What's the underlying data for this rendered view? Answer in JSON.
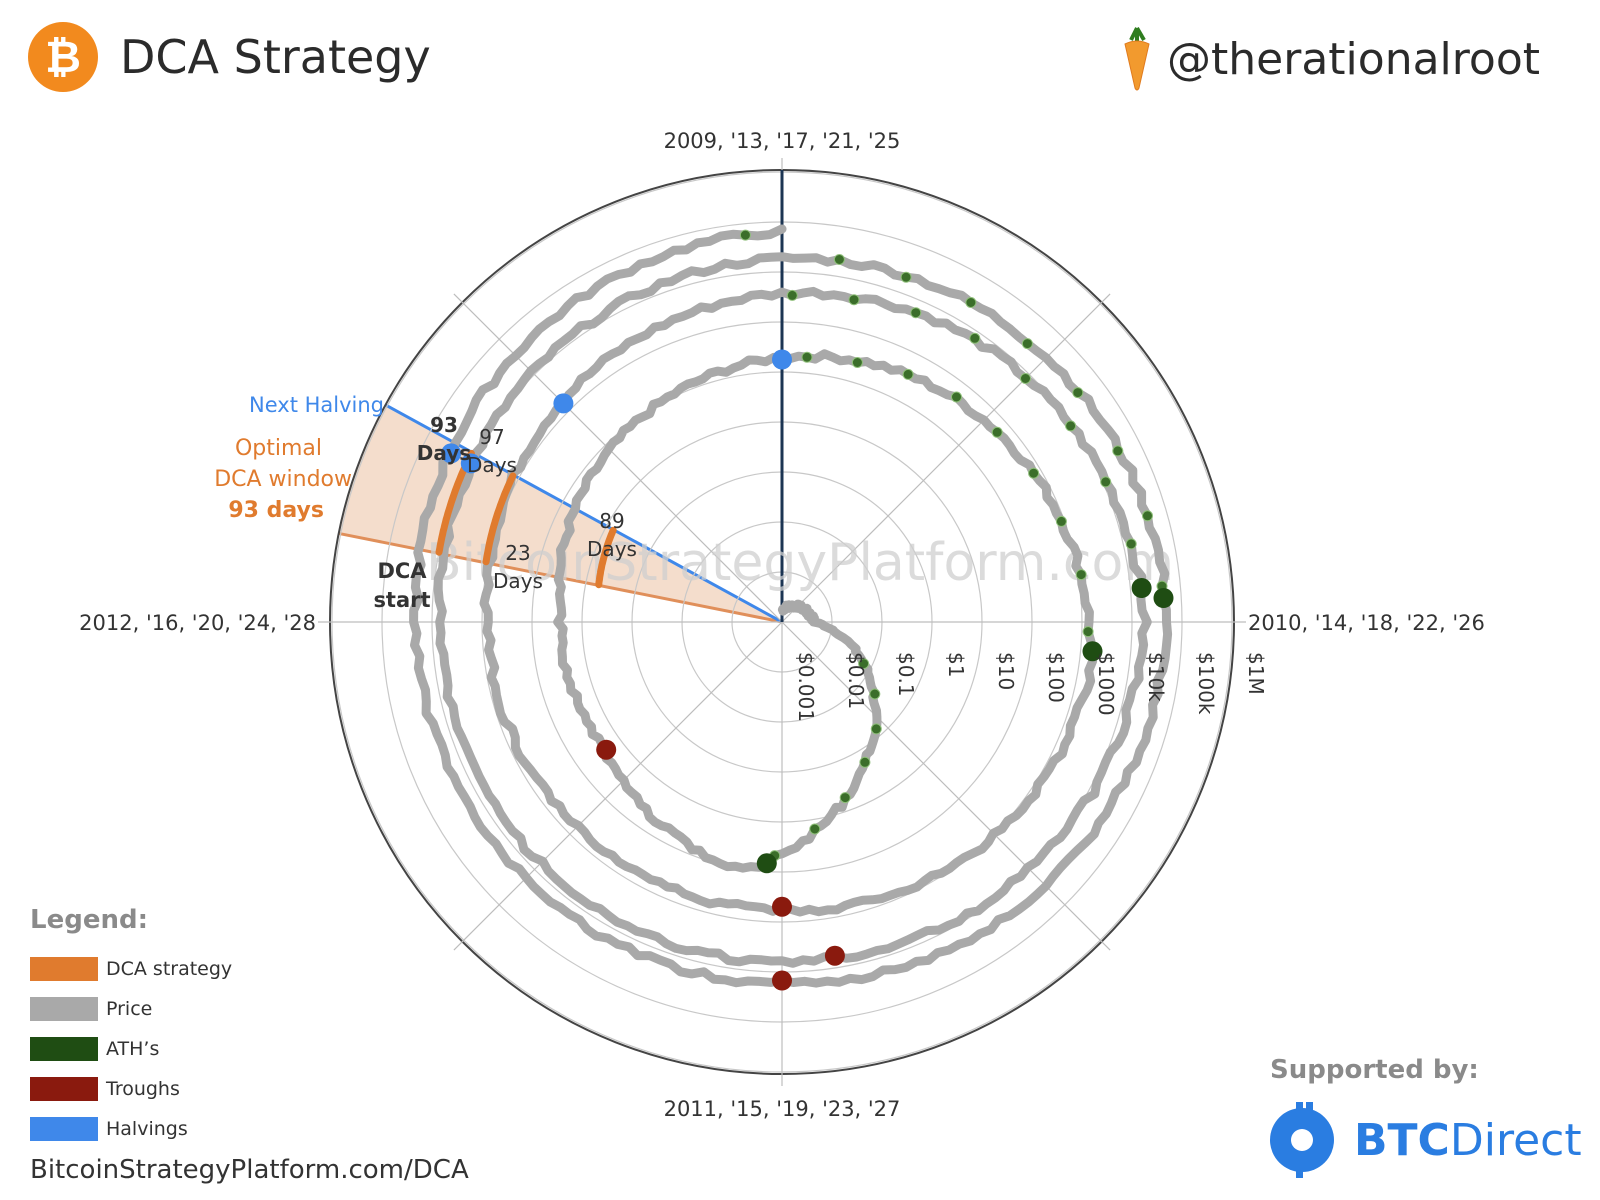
{
  "header": {
    "logo_symbol": "₿",
    "title": "DCA Strategy",
    "handle": "@therationalroot"
  },
  "chart_data": {
    "type": "polar-spiral",
    "title": "DCA Strategy",
    "angular_axis_labels": {
      "top": "2009, '13, '17, '21, '25",
      "right": "2010, '14, '18, '22, '26",
      "bottom": "2011, '15, '19, '23, '27",
      "left": "2012, '16, '20, '24, '28"
    },
    "radial_ticks": [
      "$0.001",
      "$0.01",
      "$0.1",
      "$1",
      "$10",
      "$100",
      "$1000",
      "$10k",
      "$100k",
      "$1M"
    ],
    "radial_scale": "log",
    "window_annotations": {
      "next_halving": "Next Halving",
      "optimal_window_line1": "Optimal",
      "optimal_window_line2": "DCA window",
      "optimal_window_days": "93 days",
      "dca_start_line1": "DCA",
      "dca_start_line2": "start"
    },
    "cycle_window_labels": [
      {
        "days": "93",
        "unit": "Days",
        "bold": true
      },
      {
        "days": "97",
        "unit": "Days",
        "bold": false
      },
      {
        "days": "89",
        "unit": "Days",
        "bold": false
      },
      {
        "days": "23",
        "unit": "Days",
        "bold": false
      }
    ],
    "watermark": "BitcoinStrategyPlatform.com",
    "series": [
      {
        "name": "DCA strategy"
      },
      {
        "name": "Price"
      },
      {
        "name": "ATH’s"
      },
      {
        "name": "Troughs"
      },
      {
        "name": "Halvings"
      }
    ],
    "colors": {
      "dca": "#e07b2e",
      "price": "#a9a9a9",
      "ath": "#1f4d13",
      "trough": "#8a1a0e",
      "halving": "#3f88ea",
      "window_fill": "#f3d9c6",
      "axis_dark": "#1c3553"
    }
  },
  "legend": {
    "title": "Legend:",
    "items": [
      {
        "label": "DCA strategy",
        "color": "#e07b2e"
      },
      {
        "label": "Price",
        "color": "#a9a9a9"
      },
      {
        "label": "ATH’s",
        "color": "#1f4d13"
      },
      {
        "label": "Troughs",
        "color": "#8a1a0e"
      },
      {
        "label": "Halvings",
        "color": "#3f88ea"
      }
    ]
  },
  "footer": {
    "url": "BitcoinStrategyPlatform.com/DCA",
    "supported_by": "Supported by:",
    "sponsor_bold": "BTC",
    "sponsor_light": "Direct"
  }
}
